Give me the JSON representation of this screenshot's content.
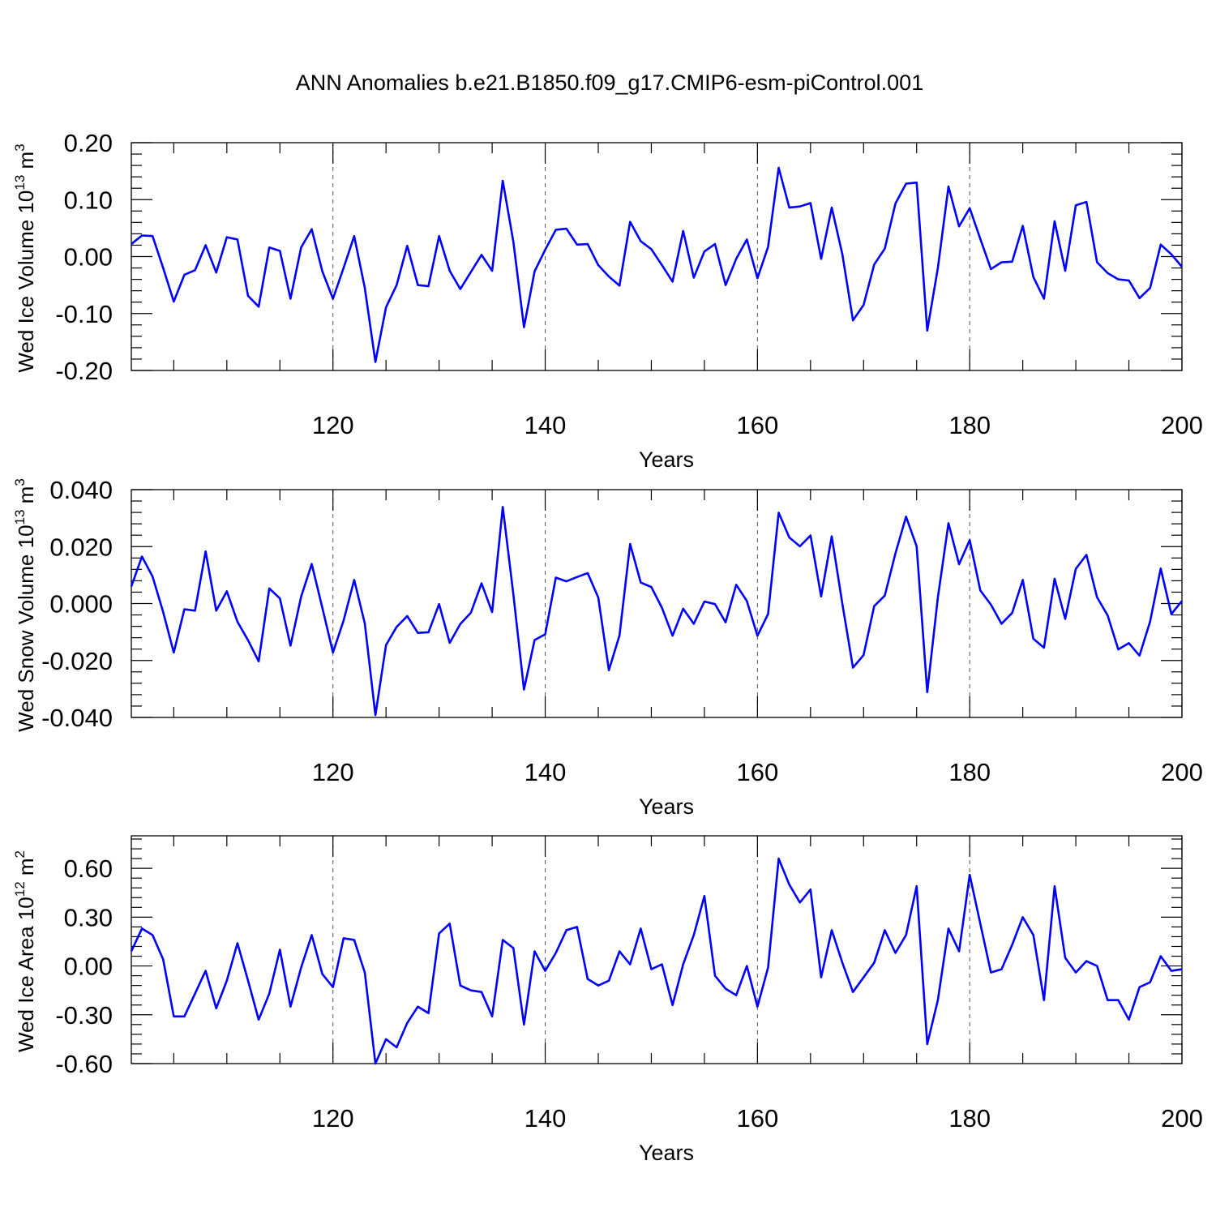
{
  "title": "ANN Anomalies b.e21.B1850.f09_g17.CMIP6-esm-piControl.001",
  "colors": {
    "series": "#0000ff",
    "axis": "#000000",
    "grid": "#555555"
  },
  "chart_data": [
    {
      "type": "line",
      "xlabel": "Years",
      "ylabel": {
        "prefix": "Wed Ice Volume 10",
        "exp1": "13",
        "mid": " m",
        "exp2": "3"
      },
      "xlim": [
        101,
        200
      ],
      "ylim": [
        -0.2,
        0.2
      ],
      "grid": "vertical dashed at major x ticks",
      "x_ticks": [
        {
          "value": 120,
          "label": "120"
        },
        {
          "value": 140,
          "label": "140"
        },
        {
          "value": 160,
          "label": "160"
        },
        {
          "value": 180,
          "label": "180"
        },
        {
          "value": 200,
          "label": "200"
        }
      ],
      "y_ticks": [
        {
          "value": 0.2,
          "label": "0.20"
        },
        {
          "value": 0.1,
          "label": "0.10"
        },
        {
          "value": 0.0,
          "label": "0.00"
        },
        {
          "value": -0.1,
          "label": "-0.10"
        },
        {
          "value": -0.2,
          "label": "-0.20"
        }
      ],
      "x_start": 101,
      "values": [
        0.022,
        0.037,
        0.036,
        -0.02,
        -0.079,
        -0.032,
        -0.024,
        0.02,
        -0.028,
        0.034,
        0.03,
        -0.069,
        -0.088,
        0.016,
        0.01,
        -0.074,
        0.016,
        0.048,
        -0.026,
        -0.074,
        -0.02,
        0.036,
        -0.055,
        -0.185,
        -0.089,
        -0.05,
        0.019,
        -0.05,
        -0.052,
        0.036,
        -0.025,
        -0.057,
        -0.027,
        0.003,
        -0.025,
        0.133,
        0.026,
        -0.124,
        -0.026,
        0.012,
        0.047,
        0.049,
        0.021,
        0.022,
        -0.015,
        -0.035,
        -0.051,
        0.061,
        0.027,
        0.013,
        -0.015,
        -0.044,
        0.045,
        -0.037,
        0.009,
        0.022,
        -0.05,
        -0.004,
        0.03,
        -0.038,
        0.017,
        0.156,
        0.086,
        0.088,
        0.094,
        -0.004,
        0.086,
        0.004,
        -0.112,
        -0.085,
        -0.014,
        0.014,
        0.093,
        0.128,
        0.13,
        -0.13,
        -0.02,
        0.123,
        0.053,
        0.085,
        0.031,
        -0.022,
        -0.01,
        -0.009,
        0.054,
        -0.036,
        -0.074,
        0.062,
        -0.025,
        0.09,
        0.096,
        -0.01,
        -0.029,
        -0.04,
        -0.042,
        -0.073,
        -0.055,
        0.021,
        0.004,
        -0.018
      ]
    },
    {
      "type": "line",
      "xlabel": "Years",
      "ylabel": {
        "prefix": "Wed Snow Volume 10",
        "exp1": "13",
        "mid": " m",
        "exp2": "3"
      },
      "xlim": [
        101,
        200
      ],
      "ylim": [
        -0.04,
        0.04
      ],
      "grid": "vertical dashed at major x ticks",
      "x_ticks": [
        {
          "value": 120,
          "label": "120"
        },
        {
          "value": 140,
          "label": "140"
        },
        {
          "value": 160,
          "label": "160"
        },
        {
          "value": 180,
          "label": "180"
        },
        {
          "value": 200,
          "label": "200"
        }
      ],
      "y_ticks": [
        {
          "value": 0.04,
          "label": "0.040"
        },
        {
          "value": 0.02,
          "label": "0.020"
        },
        {
          "value": 0.0,
          "label": "0.000"
        },
        {
          "value": -0.02,
          "label": "-0.020"
        },
        {
          "value": -0.04,
          "label": "-0.040"
        }
      ],
      "x_start": 101,
      "values": [
        0.006,
        0.0165,
        0.0095,
        -0.003,
        -0.0172,
        -0.002,
        -0.0025,
        0.0183,
        -0.0025,
        0.0043,
        -0.0064,
        -0.0129,
        -0.0203,
        0.0053,
        0.0018,
        -0.0148,
        0.0024,
        0.0139,
        -0.0015,
        -0.0172,
        -0.006,
        0.0083,
        -0.007,
        -0.0392,
        -0.0146,
        -0.0082,
        -0.0044,
        -0.0103,
        -0.0101,
        -0.0002,
        -0.0138,
        -0.0072,
        -0.0032,
        0.0071,
        -0.003,
        0.0339,
        0.0032,
        -0.0302,
        -0.0128,
        -0.0108,
        0.0091,
        0.0078,
        0.0093,
        0.0107,
        0.0021,
        -0.0234,
        -0.0112,
        0.0209,
        0.0074,
        0.0058,
        -0.0015,
        -0.0113,
        -0.0018,
        -0.0071,
        0.0007,
        -0.0002,
        -0.0066,
        0.0066,
        0.0009,
        -0.0113,
        -0.0037,
        0.0319,
        0.0232,
        0.0201,
        0.0239,
        0.0025,
        0.0236,
        -0.0001,
        -0.0225,
        -0.0181,
        -0.0009,
        0.0028,
        0.0176,
        0.0305,
        0.0201,
        -0.0311,
        0.0021,
        0.0282,
        0.0138,
        0.0223,
        0.0046,
        -0.0004,
        -0.0071,
        -0.0033,
        0.0083,
        -0.0124,
        -0.0155,
        0.0087,
        -0.0054,
        0.0122,
        0.0171,
        0.0022,
        -0.0042,
        -0.0161,
        -0.0139,
        -0.0183,
        -0.0063,
        0.0123,
        -0.0037,
        0.0009
      ]
    },
    {
      "type": "line",
      "xlabel": "Years",
      "ylabel": {
        "prefix": "Wed Ice Area 10",
        "exp1": "12",
        "mid": " m",
        "exp2": "2"
      },
      "xlim": [
        101,
        200
      ],
      "ylim": [
        -0.6,
        0.8
      ],
      "grid": "vertical dashed at major x ticks",
      "x_ticks": [
        {
          "value": 120,
          "label": "120"
        },
        {
          "value": 140,
          "label": "140"
        },
        {
          "value": 160,
          "label": "160"
        },
        {
          "value": 180,
          "label": "180"
        },
        {
          "value": 200,
          "label": "200"
        }
      ],
      "y_ticks": [
        {
          "value": 0.6,
          "label": "0.60"
        },
        {
          "value": 0.3,
          "label": "0.30"
        },
        {
          "value": 0.0,
          "label": "0.00"
        },
        {
          "value": -0.3,
          "label": "-0.30"
        },
        {
          "value": -0.6,
          "label": "-0.60"
        }
      ],
      "x_start": 101,
      "values": [
        0.09,
        0.23,
        0.19,
        0.04,
        -0.31,
        -0.31,
        -0.17,
        -0.03,
        -0.26,
        -0.09,
        0.14,
        -0.09,
        -0.33,
        -0.17,
        0.1,
        -0.25,
        -0.01,
        0.19,
        -0.05,
        -0.13,
        0.17,
        0.16,
        -0.04,
        -0.6,
        -0.45,
        -0.5,
        -0.35,
        -0.25,
        -0.29,
        0.2,
        0.26,
        -0.12,
        -0.15,
        -0.16,
        -0.31,
        0.16,
        0.11,
        -0.36,
        0.09,
        -0.03,
        0.08,
        0.22,
        0.24,
        -0.08,
        -0.12,
        -0.09,
        0.09,
        0.01,
        0.23,
        -0.02,
        0.01,
        -0.24,
        0.01,
        0.19,
        0.43,
        -0.06,
        -0.14,
        -0.18,
        0.0,
        -0.25,
        -0.01,
        0.66,
        0.5,
        0.39,
        0.47,
        -0.07,
        0.22,
        0.02,
        -0.16,
        -0.07,
        0.02,
        0.22,
        0.08,
        0.19,
        0.49,
        -0.48,
        -0.21,
        0.23,
        0.09,
        0.56,
        0.26,
        -0.04,
        -0.02,
        0.13,
        0.3,
        0.19,
        -0.21,
        0.49,
        0.05,
        -0.04,
        0.03,
        0.0,
        -0.21,
        -0.21,
        -0.33,
        -0.13,
        -0.1,
        0.06,
        -0.03,
        -0.02
      ]
    }
  ]
}
